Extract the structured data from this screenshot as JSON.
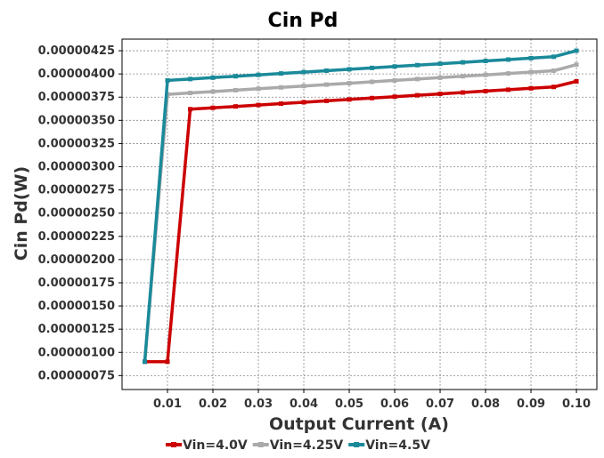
{
  "chart_data": {
    "type": "line",
    "title": "Cin Pd",
    "xlabel": "Output Current (A)",
    "ylabel": "Cin Pd(W)",
    "xlim": [
      0.0,
      0.1045
    ],
    "ylim": [
      6e-07,
      4.375e-06
    ],
    "xticks": [
      0.01,
      0.02,
      0.03,
      0.04,
      0.05,
      0.06,
      0.07,
      0.08,
      0.09,
      0.1
    ],
    "xtick_labels": [
      "0.01",
      "0.02",
      "0.03",
      "0.04",
      "0.05",
      "0.06",
      "0.07",
      "0.08",
      "0.09",
      "0.10"
    ],
    "yticks": [
      7.5e-07,
      1e-06,
      1.25e-06,
      1.5e-06,
      1.75e-06,
      2e-06,
      2.25e-06,
      2.5e-06,
      2.75e-06,
      3e-06,
      3.25e-06,
      3.5e-06,
      3.75e-06,
      4e-06,
      4.25e-06
    ],
    "ytick_labels": [
      "0.00000075",
      "0.00000100",
      "0.00000125",
      "0.00000150",
      "0.00000175",
      "0.00000200",
      "0.00000225",
      "0.00000250",
      "0.00000275",
      "0.00000300",
      "0.00000325",
      "0.00000350",
      "0.00000375",
      "0.00000400",
      "0.00000425"
    ],
    "grid": true,
    "legend_position": "bottom",
    "x": [
      0.005,
      0.01,
      0.015,
      0.02,
      0.025,
      0.03,
      0.035,
      0.04,
      0.045,
      0.05,
      0.055,
      0.06,
      0.065,
      0.07,
      0.075,
      0.08,
      0.085,
      0.09,
      0.095,
      0.1
    ],
    "series": [
      {
        "name": "Vin=4.0V",
        "color": "#cc0000",
        "values": [
          9e-07,
          9e-07,
          3.62e-06,
          3.635e-06,
          3.65e-06,
          3.665e-06,
          3.68e-06,
          3.695e-06,
          3.71e-06,
          3.725e-06,
          3.74e-06,
          3.755e-06,
          3.77e-06,
          3.785e-06,
          3.8e-06,
          3.815e-06,
          3.83e-06,
          3.845e-06,
          3.86e-06,
          3.92e-06
        ]
      },
      {
        "name": "Vin=4.25V",
        "color": "#aaaaaa",
        "values": [
          9e-07,
          3.78e-06,
          3.795e-06,
          3.81e-06,
          3.825e-06,
          3.84e-06,
          3.855e-06,
          3.87e-06,
          3.885e-06,
          3.9e-06,
          3.915e-06,
          3.93e-06,
          3.945e-06,
          3.96e-06,
          3.975e-06,
          3.99e-06,
          4.005e-06,
          4.02e-06,
          4.035e-06,
          4.1e-06
        ]
      },
      {
        "name": "Vin=4.5V",
        "color": "#1a8a9a",
        "values": [
          9e-07,
          3.93e-06,
          3.945e-06,
          3.96e-06,
          3.975e-06,
          3.99e-06,
          4.005e-06,
          4.02e-06,
          4.035e-06,
          4.05e-06,
          4.065e-06,
          4.08e-06,
          4.095e-06,
          4.11e-06,
          4.125e-06,
          4.14e-06,
          4.155e-06,
          4.17e-06,
          4.185e-06,
          4.25e-06
        ]
      }
    ]
  }
}
